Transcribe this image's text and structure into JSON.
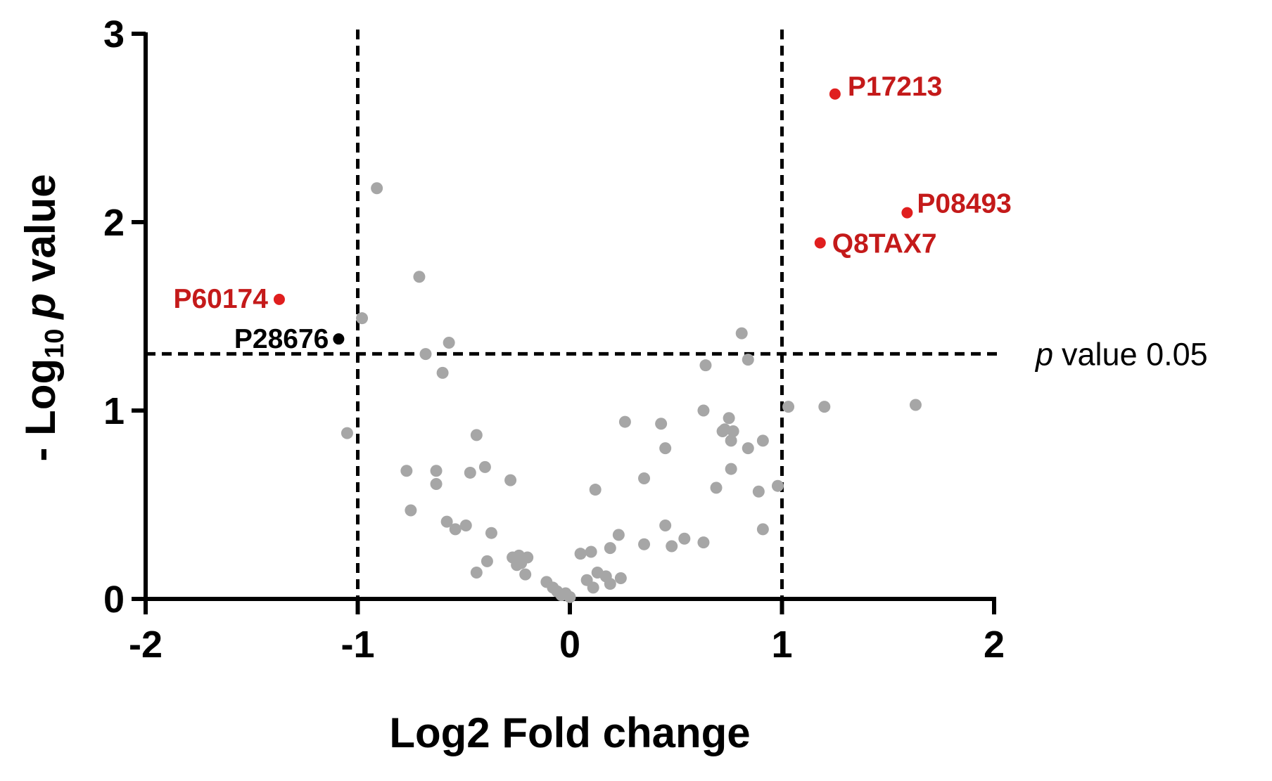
{
  "chart_data": {
    "type": "scatter",
    "title": "",
    "xlabel": "Log2 Fold change",
    "ylabel": {
      "prefix": "- Log",
      "subscript": "10",
      "italic": "p",
      "suffix": "value"
    },
    "xlim": [
      -2,
      2
    ],
    "ylim": [
      0,
      3
    ],
    "xticks": [
      "-2",
      "-1",
      "0",
      "1",
      "2"
    ],
    "yticks": [
      "0",
      "1",
      "2",
      "3"
    ],
    "grid": false,
    "thresholds": {
      "vertical": [
        -1,
        1
      ],
      "horizontal": 1.301,
      "horizontal_label": {
        "italic": "p",
        "text": "value 0.05"
      }
    },
    "colors": {
      "background_points": "#a6a6a6",
      "highlight": "#e01e1e",
      "highlight_label": "#c41a1a",
      "neutral_labeled": "#000000"
    },
    "labeled_points": [
      {
        "name": "P17213",
        "x": 1.25,
        "y": 2.68,
        "color": "#e01e1e"
      },
      {
        "name": "P08493",
        "x": 1.59,
        "y": 2.05,
        "color": "#e01e1e"
      },
      {
        "name": "Q8TAX7",
        "x": 1.18,
        "y": 1.89,
        "color": "#e01e1e"
      },
      {
        "name": "P60174",
        "x": -1.37,
        "y": 1.59,
        "color": "#e01e1e"
      },
      {
        "name": "P28676",
        "x": -1.09,
        "y": 1.38,
        "color": "#000000"
      }
    ],
    "points": [
      [
        -0.91,
        2.18
      ],
      [
        -0.71,
        1.71
      ],
      [
        -0.98,
        1.49
      ],
      [
        -0.57,
        1.36
      ],
      [
        -0.68,
        1.3
      ],
      [
        -0.6,
        1.2
      ],
      [
        -1.05,
        0.88
      ],
      [
        -0.44,
        0.87
      ],
      [
        -0.77,
        0.68
      ],
      [
        -0.63,
        0.68
      ],
      [
        -0.63,
        0.61
      ],
      [
        -0.47,
        0.67
      ],
      [
        -0.4,
        0.7
      ],
      [
        -0.28,
        0.63
      ],
      [
        -0.75,
        0.47
      ],
      [
        -0.58,
        0.41
      ],
      [
        -0.54,
        0.37
      ],
      [
        -0.49,
        0.39
      ],
      [
        -0.37,
        0.35
      ],
      [
        -0.39,
        0.2
      ],
      [
        -0.44,
        0.14
      ],
      [
        -0.27,
        0.22
      ],
      [
        -0.24,
        0.23
      ],
      [
        -0.2,
        0.22
      ],
      [
        -0.23,
        0.19
      ],
      [
        -0.25,
        0.18
      ],
      [
        -0.21,
        0.13
      ],
      [
        -0.11,
        0.09
      ],
      [
        -0.08,
        0.06
      ],
      [
        -0.06,
        0.04
      ],
      [
        -0.04,
        0.02
      ],
      [
        0.0,
        0.01
      ],
      [
        -0.02,
        0.03
      ],
      [
        0.05,
        0.24
      ],
      [
        0.1,
        0.25
      ],
      [
        0.08,
        0.1
      ],
      [
        0.11,
        0.06
      ],
      [
        0.13,
        0.14
      ],
      [
        0.17,
        0.12
      ],
      [
        0.19,
        0.08
      ],
      [
        0.12,
        0.58
      ],
      [
        0.19,
        0.27
      ],
      [
        0.23,
        0.34
      ],
      [
        0.24,
        0.11
      ],
      [
        0.26,
        0.94
      ],
      [
        0.35,
        0.64
      ],
      [
        0.35,
        0.29
      ],
      [
        0.43,
        0.93
      ],
      [
        0.45,
        0.8
      ],
      [
        0.45,
        0.39
      ],
      [
        0.48,
        0.28
      ],
      [
        0.54,
        0.32
      ],
      [
        0.63,
        1.0
      ],
      [
        0.63,
        0.3
      ],
      [
        0.64,
        1.24
      ],
      [
        0.69,
        0.59
      ],
      [
        0.72,
        0.89
      ],
      [
        0.73,
        0.9
      ],
      [
        0.75,
        0.96
      ],
      [
        0.76,
        0.69
      ],
      [
        0.76,
        0.84
      ],
      [
        0.77,
        0.89
      ],
      [
        0.81,
        1.41
      ],
      [
        0.84,
        1.27
      ],
      [
        0.84,
        0.8
      ],
      [
        0.89,
        0.57
      ],
      [
        0.91,
        0.84
      ],
      [
        0.91,
        0.37
      ],
      [
        0.98,
        0.6
      ],
      [
        1.03,
        1.02
      ],
      [
        1.2,
        1.02
      ],
      [
        1.63,
        1.03
      ]
    ]
  }
}
